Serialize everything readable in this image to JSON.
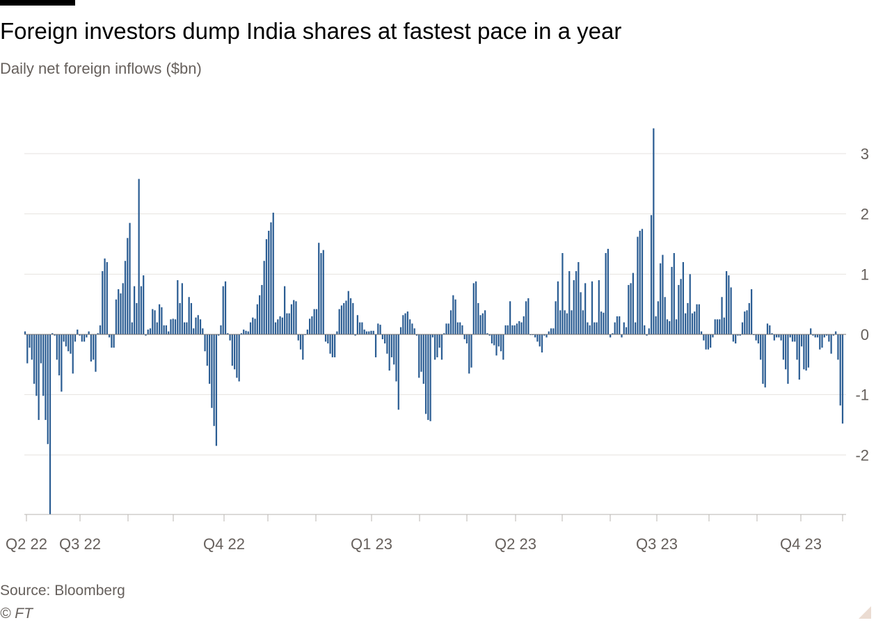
{
  "title": "Foreign investors dump India shares at fastest pace in a year",
  "subtitle": "Daily net foreign inflows ($bn)",
  "source": "Source: Bloomberg",
  "credit": "© FT",
  "colors": {
    "bar": "#2b5d93",
    "grid": "#e6e2df",
    "axis": "#b9b4b0",
    "text": "#66605c",
    "zero": "#7a7470"
  },
  "chart_data": {
    "type": "bar",
    "ylim": [
      -3.0,
      3.5
    ],
    "yticks": [
      3,
      2,
      1,
      0,
      -1,
      -2
    ],
    "ytick_labels": [
      "3",
      "2",
      "1",
      "0",
      "-1",
      "-2"
    ],
    "grid": true,
    "y_axis_side": "right",
    "xtick_labels": [
      "Q2 22",
      "Q3 22",
      "Q4 22",
      "Q1 23",
      "Q2 23",
      "Q3 23",
      "Q4 23"
    ],
    "values": [
      0.05,
      -0.48,
      -0.22,
      -0.42,
      -0.82,
      -1.02,
      -1.42,
      -0.48,
      -1.02,
      -1.42,
      -1.82,
      -3.0,
      0.02,
      -0.02,
      -0.42,
      -0.68,
      -0.95,
      -0.12,
      -0.2,
      -0.28,
      -0.32,
      -0.65,
      -0.12,
      0.08,
      -0.02,
      -0.12,
      -0.12,
      -0.05,
      0.05,
      -0.45,
      -0.42,
      -0.62,
      0.02,
      0.15,
      1.05,
      1.26,
      1.2,
      -0.05,
      -0.22,
      -0.22,
      0.58,
      0.75,
      0.68,
      0.85,
      1.22,
      1.6,
      1.85,
      0.2,
      0.8,
      0.52,
      2.58,
      0.8,
      0.98,
      -0.02,
      0.08,
      0.1,
      0.42,
      0.4,
      0.2,
      0.5,
      0.45,
      0.15,
      0.15,
      0.05,
      0.25,
      0.26,
      0.25,
      0.9,
      0.52,
      0.85,
      0.2,
      0.2,
      0.62,
      0.52,
      0.1,
      0.28,
      0.32,
      0.25,
      0.1,
      -0.28,
      -0.52,
      -0.82,
      -1.22,
      -1.52,
      -1.85,
      -0.02,
      0.15,
      0.8,
      0.88,
      0.02,
      -0.1,
      -0.52,
      -0.58,
      -0.72,
      -0.78,
      0.02,
      0.08,
      0.06,
      0.05,
      0.2,
      0.28,
      0.26,
      0.5,
      0.65,
      0.82,
      1.22,
      1.58,
      1.72,
      1.86,
      2.02,
      0.2,
      0.25,
      0.3,
      0.28,
      0.8,
      0.35,
      0.35,
      0.5,
      0.57,
      0.55,
      -0.1,
      -0.25,
      -0.42,
      0.0,
      0.08,
      0.26,
      0.3,
      0.42,
      0.42,
      1.52,
      1.35,
      1.4,
      -0.12,
      -0.15,
      -0.32,
      -0.38,
      -0.38,
      0.05,
      0.42,
      0.48,
      0.52,
      0.56,
      0.72,
      0.6,
      0.52,
      -0.02,
      0.32,
      0.2,
      0.2,
      0.08,
      0.05,
      0.05,
      0.06,
      0.06,
      -0.38,
      0.18,
      0.16,
      -0.08,
      -0.15,
      -0.32,
      -0.6,
      -0.38,
      -0.5,
      -0.78,
      -1.25,
      0.12,
      0.32,
      0.35,
      0.38,
      0.25,
      0.18,
      0.1,
      -0.02,
      -0.72,
      -0.62,
      -0.82,
      -1.32,
      -1.42,
      -1.44,
      -0.05,
      -0.42,
      -0.38,
      -0.22,
      -0.42,
      0.02,
      0.18,
      0.18,
      0.4,
      0.65,
      0.58,
      0.2,
      0.2,
      0.15,
      -0.08,
      -0.15,
      -0.65,
      -0.55,
      0.85,
      0.88,
      0.52,
      0.32,
      0.35,
      0.4,
      0.02,
      -0.02,
      -0.15,
      -0.18,
      -0.35,
      -0.2,
      -0.28,
      -0.42,
      0.15,
      0.15,
      0.55,
      0.15,
      0.15,
      0.18,
      0.22,
      0.2,
      0.3,
      0.55,
      0.6,
      0.0,
      0.0,
      -0.05,
      -0.12,
      -0.2,
      -0.3,
      -0.02,
      -0.05,
      0.05,
      0.1,
      0.1,
      0.55,
      0.88,
      0.4,
      1.35,
      0.4,
      0.35,
      1.05,
      0.4,
      0.9,
      1.05,
      1.2,
      0.7,
      0.4,
      0.85,
      0.2,
      0.15,
      0.88,
      0.2,
      0.2,
      0.9,
      0.38,
      0.36,
      1.35,
      1.42,
      -0.05,
      0.02,
      0.2,
      0.3,
      0.3,
      -0.05,
      0.2,
      0.12,
      0.82,
      0.85,
      1.02,
      0.2,
      1.62,
      1.72,
      1.75,
      0.15,
      -0.02,
      0.1,
      1.98,
      3.42,
      0.3,
      0.55,
      1.18,
      1.32,
      0.62,
      0.25,
      0.22,
      1.12,
      1.35,
      0.25,
      0.82,
      0.92,
      1.2,
      0.35,
      0.52,
      1.0,
      0.35,
      0.38,
      0.5,
      0.5,
      0.05,
      -0.1,
      -0.25,
      -0.25,
      -0.22,
      -0.05,
      0.25,
      0.25,
      0.25,
      0.62,
      0.28,
      1.05,
      0.98,
      0.78,
      -0.12,
      -0.15,
      -0.02,
      -0.02,
      0.2,
      0.38,
      0.4,
      0.52,
      0.75,
      0.0,
      -0.1,
      -0.15,
      -0.42,
      -0.82,
      -0.88,
      0.18,
      0.15,
      0.02,
      -0.1,
      -0.05,
      -0.05,
      -0.1,
      -0.42,
      -0.58,
      -0.82,
      -0.05,
      -0.12,
      -0.12,
      -0.42,
      -0.75,
      -0.2,
      -0.58,
      -0.6,
      -0.55,
      0.1,
      -0.02,
      -0.05,
      -0.05,
      -0.25,
      -0.22,
      -0.05,
      -0.02,
      -0.12,
      -0.32,
      -0.02,
      0.05,
      -0.42,
      -1.18,
      -1.48
    ]
  }
}
